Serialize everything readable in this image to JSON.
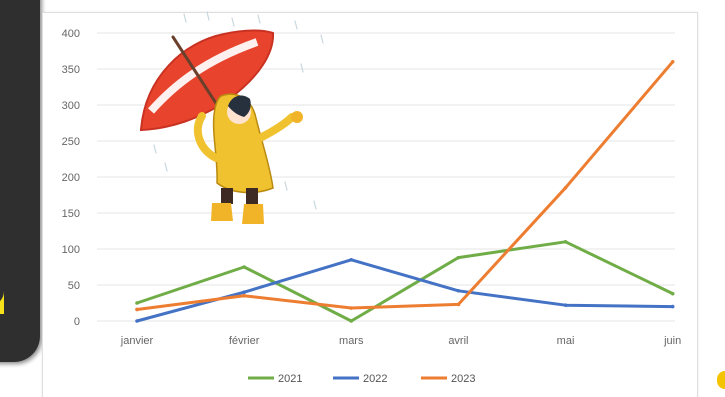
{
  "chart_data": {
    "type": "line",
    "categories": [
      "janvier",
      "février",
      "mars",
      "avril",
      "mai",
      "juin"
    ],
    "ylim": [
      0,
      400
    ],
    "yticks": [
      0,
      50,
      100,
      150,
      200,
      250,
      300,
      350,
      400
    ],
    "grid": true,
    "legend_position": "bottom",
    "series": [
      {
        "name": "2021",
        "color": "#70ad47",
        "values": [
          25,
          75,
          0,
          88,
          110,
          38
        ]
      },
      {
        "name": "2022",
        "color": "#4472c4",
        "values": [
          0,
          40,
          85,
          42,
          22,
          20
        ]
      },
      {
        "name": "2023",
        "color": "#ed7d31",
        "values": [
          16,
          35,
          18,
          23,
          185,
          360
        ]
      }
    ]
  },
  "illustration": {
    "subject": "child-with-umbrella-in-rain",
    "colors": {
      "umbrella": "#e8442d",
      "raincoat": "#f0c22f",
      "boots": "#f1b429"
    }
  }
}
